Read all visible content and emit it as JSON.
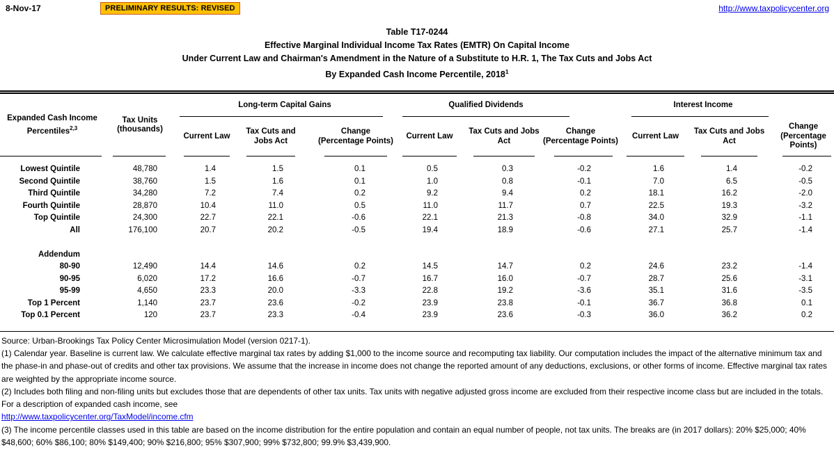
{
  "header": {
    "date": "8-Nov-17",
    "banner": "PRELIMINARY RESULTS: REVISED",
    "site_link": "http://www.taxpolicycenter.org"
  },
  "title": {
    "line1": "Table T17-0244",
    "line2": "Effective Marginal Individual Income Tax Rates (EMTR) On Capital Income",
    "line3": "Under Current Law and Chairman's Amendment in the Nature of a Substitute to H.R. 1, The Tax Cuts and Jobs Act",
    "line4": "By Expanded Cash Income Percentile, 2018",
    "line4_sup": "1"
  },
  "table": {
    "col1_header": "Expanded Cash Income Percentiles",
    "col1_header_sup": "2,3",
    "col2_header": "Tax Units (thousands)",
    "groups": [
      "Long-term Capital Gains",
      "Qualified Dividends",
      "Interest Income"
    ],
    "sub_headers": [
      "Current Law",
      "Tax Cuts and Jobs Act",
      "Change (Percentage Points)"
    ],
    "rows": [
      {
        "label": "Lowest Quintile",
        "cells": [
          "48,780",
          "1.4",
          "1.5",
          "0.1",
          "0.5",
          "0.3",
          "-0.2",
          "1.6",
          "1.4",
          "-0.2"
        ]
      },
      {
        "label": "Second Quintile",
        "cells": [
          "38,760",
          "1.5",
          "1.6",
          "0.1",
          "1.0",
          "0.8",
          "-0.1",
          "7.0",
          "6.5",
          "-0.5"
        ]
      },
      {
        "label": "Third Quintile",
        "cells": [
          "34,280",
          "7.2",
          "7.4",
          "0.2",
          "9.2",
          "9.4",
          "0.2",
          "18.1",
          "16.2",
          "-2.0"
        ]
      },
      {
        "label": "Fourth Quintile",
        "cells": [
          "28,870",
          "10.4",
          "11.0",
          "0.5",
          "11.0",
          "11.7",
          "0.7",
          "22.5",
          "19.3",
          "-3.2"
        ]
      },
      {
        "label": "Top Quintile",
        "cells": [
          "24,300",
          "22.7",
          "22.1",
          "-0.6",
          "22.1",
          "21.3",
          "-0.8",
          "34.0",
          "32.9",
          "-1.1"
        ]
      },
      {
        "label": "All",
        "cells": [
          "176,100",
          "20.7",
          "20.2",
          "-0.5",
          "19.4",
          "18.9",
          "-0.6",
          "27.1",
          "25.7",
          "-1.4"
        ]
      },
      {
        "type": "spacer"
      },
      {
        "label": "Addendum",
        "type": "section",
        "cells": []
      },
      {
        "label": "80-90",
        "cells": [
          "12,490",
          "14.4",
          "14.6",
          "0.2",
          "14.5",
          "14.7",
          "0.2",
          "24.6",
          "23.2",
          "-1.4"
        ]
      },
      {
        "label": "90-95",
        "cells": [
          "6,020",
          "17.2",
          "16.6",
          "-0.7",
          "16.7",
          "16.0",
          "-0.7",
          "28.7",
          "25.6",
          "-3.1"
        ]
      },
      {
        "label": "95-99",
        "cells": [
          "4,650",
          "23.3",
          "20.0",
          "-3.3",
          "22.8",
          "19.2",
          "-3.6",
          "35.1",
          "31.6",
          "-3.5"
        ]
      },
      {
        "label": "Top 1 Percent",
        "cells": [
          "1,140",
          "23.7",
          "23.6",
          "-0.2",
          "23.9",
          "23.8",
          "-0.1",
          "36.7",
          "36.8",
          "0.1"
        ]
      },
      {
        "label": "Top 0.1 Percent",
        "cells": [
          "120",
          "23.7",
          "23.3",
          "-0.4",
          "23.9",
          "23.6",
          "-0.3",
          "36.0",
          "36.2",
          "0.2"
        ]
      }
    ]
  },
  "footer": {
    "source": "Source: Urban-Brookings Tax Policy Center Microsimulation Model (version 0217-1).",
    "note1": "(1) Calendar year. Baseline is current law. We calculate effective marginal tax rates by adding $1,000 to the income source and recomputing tax liability. Our computation includes the impact of the alternative minimum tax and the phase-in and phase-out of credits and other tax provisions. We assume that the increase in income does not change the reported amount of any deductions, exclusions, or other forms of income. Effective marginal tax rates are weighted by the appropriate income source.",
    "note2": "(2) Includes both filing and non-filing units but excludes those that are dependents of other tax units. Tax units with negative adjusted gross income are excluded from their respective income class but are included in the totals. For a description of expanded cash income, see",
    "note2_link": "http://www.taxpolicycenter.org/TaxModel/income.cfm",
    "note3": "(3) The income percentile classes used in this table are based on the income distribution for the entire population and contain an equal number of people, not tax units. The breaks are (in 2017 dollars): 20% $25,000; 40% $48,600; 60% $86,100; 80% $149,400; 90% $216,800; 95% $307,900; 99% $732,800; 99.9% $3,439,900."
  },
  "colors": {
    "banner_bg": "#FFC000",
    "banner_border": "#C55A11",
    "link": "#0000EE"
  }
}
